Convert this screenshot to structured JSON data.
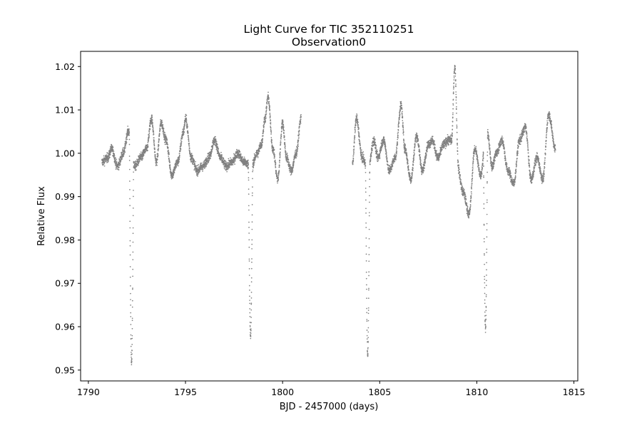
{
  "chart_data": {
    "type": "scatter",
    "title": "Light Curve for TIC 352110251",
    "subtitle": "Observation0",
    "xlabel": "BJD - 2457000 (days)",
    "ylabel": "Relative Flux",
    "xlim": [
      1789.6,
      1815.2
    ],
    "ylim": [
      0.9475,
      1.0235
    ],
    "xticks": [
      1790,
      1795,
      1800,
      1805,
      1810,
      1815
    ],
    "xtick_labels": [
      "1790",
      "1795",
      "1800",
      "1805",
      "1810",
      "1815"
    ],
    "yticks": [
      0.95,
      0.96,
      0.97,
      0.98,
      0.99,
      1.0,
      1.01,
      1.02
    ],
    "ytick_labels": [
      "0.95",
      "0.96",
      "0.97",
      "0.98",
      "0.99",
      "1.00",
      "1.01",
      "1.02"
    ],
    "grid": false,
    "marker_color": "#808080",
    "segments": [
      {
        "x_start": 1790.7,
        "x_end": 1800.95
      },
      {
        "x_start": 1803.6,
        "x_end": 1814.05
      }
    ],
    "trend": {
      "x": [
        1790.7,
        1791.0,
        1791.2,
        1791.5,
        1791.8,
        1792.05,
        1792.4,
        1792.7,
        1793.0,
        1793.25,
        1793.5,
        1793.75,
        1794.0,
        1794.3,
        1794.6,
        1794.9,
        1795.0,
        1795.3,
        1795.6,
        1795.9,
        1796.2,
        1796.5,
        1796.8,
        1797.1,
        1797.4,
        1797.7,
        1798.0,
        1798.4,
        1798.7,
        1798.9,
        1799.1,
        1799.25,
        1799.5,
        1799.75,
        1800.0,
        1800.2,
        1800.45,
        1800.7,
        1800.95,
        1803.6,
        1803.8,
        1804.1,
        1804.4,
        1804.7,
        1804.9,
        1805.2,
        1805.5,
        1805.8,
        1806.1,
        1806.3,
        1806.6,
        1806.9,
        1807.2,
        1807.5,
        1807.7,
        1808.0,
        1808.3,
        1808.5,
        1808.8,
        1809.0,
        1809.3,
        1809.6,
        1809.9,
        1810.2,
        1810.5,
        1810.8,
        1811.0,
        1811.3,
        1811.6,
        1811.9,
        1812.2,
        1812.5,
        1812.8,
        1813.1,
        1813.4,
        1813.7,
        1814.05
      ],
      "y": [
        0.998,
        0.999,
        1.001,
        0.997,
        1.0,
        1.005,
        0.997,
        0.999,
        1.001,
        1.008,
        0.998,
        1.007,
        1.003,
        0.995,
        0.998,
        1.005,
        1.008,
        0.999,
        0.996,
        0.997,
        0.999,
        1.003,
        0.999,
        0.997,
        0.998,
        1.0,
        0.998,
        0.997,
        1.0,
        1.002,
        1.008,
        1.013,
        1.001,
        0.994,
        1.007,
        0.999,
        0.996,
        1.0,
        1.008,
        0.998,
        1.008,
        0.999,
        0.996,
        1.003,
        0.999,
        1.003,
        0.996,
        0.999,
        1.011,
        1.001,
        0.994,
        1.004,
        0.996,
        1.002,
        1.003,
        0.999,
        1.002,
        1.003,
        1.003,
        0.997,
        0.991,
        0.986,
        1.001,
        0.995,
        1.006,
        0.997,
        1.0,
        1.003,
        0.996,
        0.993,
        1.003,
        1.006,
        0.994,
        0.999,
        0.994,
        1.009,
        1.001
      ]
    },
    "transits": [
      {
        "center": 1792.22,
        "min_flux": 0.9515
      },
      {
        "center": 1798.35,
        "min_flux": 0.9575
      },
      {
        "center": 1804.38,
        "min_flux": 0.9535
      },
      {
        "center": 1810.45,
        "min_flux": 0.9595
      }
    ],
    "flare": {
      "center": 1808.88,
      "peak_flux": 1.0195
    }
  }
}
